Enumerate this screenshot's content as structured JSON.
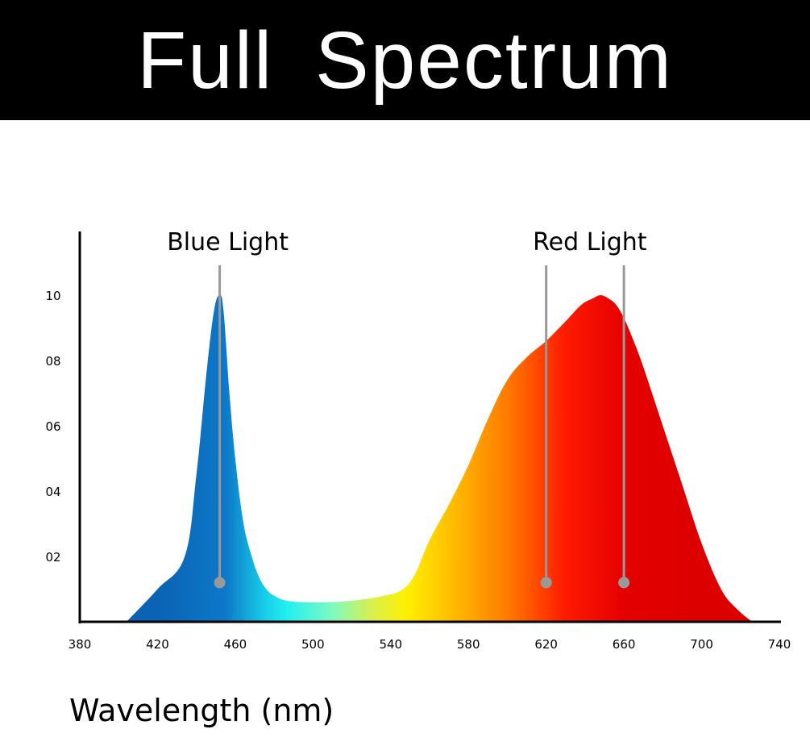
{
  "header": {
    "title": "Full Spectrum"
  },
  "chart_data": {
    "type": "area",
    "title": "Full Spectrum",
    "xlabel": "Wavelength (nm)",
    "ylabel": "",
    "xlim": [
      380,
      740
    ],
    "ylim": [
      0,
      1.0
    ],
    "xticks": [
      380,
      420,
      460,
      500,
      540,
      580,
      620,
      660,
      700,
      740
    ],
    "xtick_labels": [
      "380",
      "420",
      "460",
      "500",
      "540",
      "580",
      "620",
      "660",
      "700",
      "740"
    ],
    "yticks": [
      0.2,
      0.4,
      0.6,
      0.8,
      1.0
    ],
    "ytick_labels": [
      "02",
      "04",
      "06",
      "08",
      "10"
    ],
    "grid": false,
    "series": [
      {
        "x": [
          404,
          420,
          434,
          440,
          445,
          449,
          452,
          454,
          457,
          460,
          464,
          468,
          472,
          476,
          480,
          486,
          495,
          505,
          515,
          525,
          535,
          545,
          552,
          560,
          570,
          580,
          590,
          600,
          610,
          620,
          630,
          638,
          644,
          648,
          652,
          656,
          660,
          665,
          670,
          680,
          690,
          700,
          710,
          718,
          726
        ],
        "values": [
          0.0,
          0.1,
          0.2,
          0.45,
          0.75,
          0.95,
          1.0,
          0.95,
          0.7,
          0.5,
          0.31,
          0.21,
          0.14,
          0.1,
          0.08,
          0.065,
          0.06,
          0.06,
          0.062,
          0.068,
          0.078,
          0.095,
          0.14,
          0.25,
          0.36,
          0.48,
          0.62,
          0.74,
          0.81,
          0.86,
          0.92,
          0.97,
          0.99,
          1.0,
          0.99,
          0.97,
          0.93,
          0.86,
          0.78,
          0.6,
          0.42,
          0.24,
          0.1,
          0.04,
          0.0
        ]
      }
    ],
    "gradient_stops": [
      {
        "x": 420,
        "color": "#0a63b4"
      },
      {
        "x": 455,
        "color": "#0d78c8"
      },
      {
        "x": 475,
        "color": "#17cde8"
      },
      {
        "x": 487,
        "color": "#22f0f0"
      },
      {
        "x": 510,
        "color": "#7efac0"
      },
      {
        "x": 530,
        "color": "#d8f050"
      },
      {
        "x": 548,
        "color": "#fff000"
      },
      {
        "x": 570,
        "color": "#ffc000"
      },
      {
        "x": 600,
        "color": "#ff7a00"
      },
      {
        "x": 630,
        "color": "#ff1a00"
      },
      {
        "x": 660,
        "color": "#e40000"
      },
      {
        "x": 700,
        "color": "#dc0000"
      }
    ],
    "annotations": [
      {
        "label": "Blue Light",
        "markers": [
          452
        ]
      },
      {
        "label": "Red Light",
        "markers": [
          620,
          660
        ]
      }
    ],
    "marker_level": 0.12,
    "marker_color": "#999999"
  }
}
